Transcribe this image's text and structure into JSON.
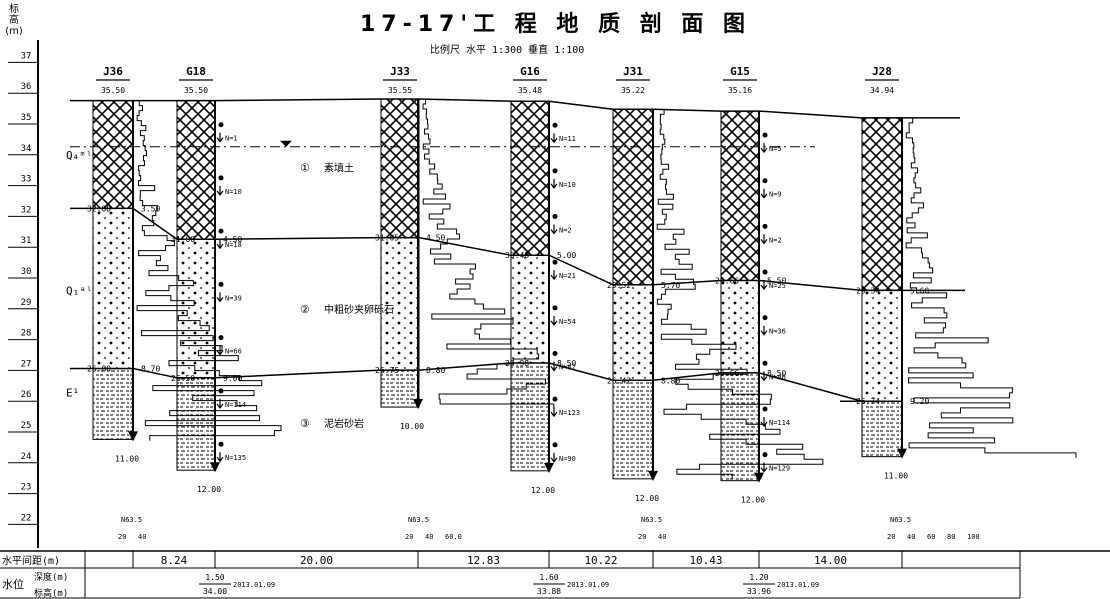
{
  "title": "17-17'工 程 地 质 剖 面 图",
  "scale_text": "比例尺  水平  1:300    垂直  1:100",
  "y_axis": {
    "label": [
      "标",
      "高",
      "(m)"
    ],
    "ticks": [
      37,
      36,
      35,
      34,
      33,
      32,
      31,
      30,
      29,
      28,
      27,
      26,
      25,
      24,
      23,
      22
    ]
  },
  "boreholes": [
    {
      "id": "J36",
      "elev": "35.50",
      "kind": "cpt",
      "depth_label": "11.00"
    },
    {
      "id": "G18",
      "elev": "35.50",
      "kind": "spt",
      "depth_label": "12.00"
    },
    {
      "id": "J33",
      "elev": "35.55",
      "kind": "cpt",
      "depth_label": "10.00"
    },
    {
      "id": "G16",
      "elev": "35.48",
      "kind": "spt",
      "depth_label": "12.00"
    },
    {
      "id": "J31",
      "elev": "35.22",
      "kind": "cpt",
      "depth_label": "12.00"
    },
    {
      "id": "G15",
      "elev": "35.16",
      "kind": "spt",
      "depth_label": "12.00"
    },
    {
      "id": "J28",
      "elev": "34.94",
      "kind": "cpt",
      "depth_label": "11.00"
    }
  ],
  "layer_tops": {
    "J36": [
      [
        "32.00",
        "3.50"
      ],
      [
        "26.80",
        "8.70"
      ]
    ],
    "G18": [
      [
        "31.00",
        "4.50"
      ],
      [
        "26.50",
        "9.00"
      ]
    ],
    "J33": [
      [
        "31.05",
        "4.50"
      ],
      [
        "26.75",
        "8.80"
      ]
    ],
    "G16": [
      [
        "30.48",
        "5.00"
      ],
      [
        "26.98",
        "8.50"
      ]
    ],
    "J31": [
      [
        "29.52",
        "5.70"
      ],
      [
        "26.42",
        "8.80"
      ]
    ],
    "G15": [
      [
        "29.66",
        "5.50"
      ],
      [
        "26.66",
        "8.50"
      ]
    ],
    "J28": [
      [
        "29.34",
        "5.60"
      ],
      [
        "25.74",
        "9.20"
      ]
    ]
  },
  "spt": {
    "G18": [
      "N=1",
      "N=10",
      "N=18",
      "N=39",
      "N=66",
      "N=114",
      "N=135"
    ],
    "G16": [
      "N=11",
      "N=10",
      "N=2",
      "N=21",
      "N=54",
      "N=87",
      "N=123",
      "N=90"
    ],
    "G15": [
      "N=5",
      "N=9",
      "N=2",
      "N=25",
      "N=36",
      "N=96",
      "N=114",
      "N=129"
    ]
  },
  "layers": [
    {
      "num": "①",
      "name": "素填土"
    },
    {
      "num": "②",
      "name": "中粗砂夹卵砾石"
    },
    {
      "num": "③",
      "name": "泥岩砂岩"
    }
  ],
  "strata_codes": [
    "Q₄ᵐˡ",
    "Q₁ᵃˡ",
    "E¹"
  ],
  "cpt_axis_labels": {
    "J36": [
      "N63.5",
      "20",
      "40"
    ],
    "J33": [
      "N63.5",
      "20",
      "40",
      "60.0"
    ],
    "J31": [
      "N63.5",
      "20",
      "40"
    ],
    "J28": [
      "N63.5",
      "20",
      "40",
      "60",
      "80",
      "100"
    ]
  },
  "table": {
    "row1_label": "水平间距(m)",
    "distances": [
      "8.24",
      "20.00",
      "12.83",
      "10.22",
      "10.43",
      "14.00"
    ],
    "row2_label": "水位",
    "sub_labels": [
      "深度(m)",
      "标高(m)"
    ],
    "water": [
      {
        "depth": "1.50",
        "elev": "34.00",
        "date": "2013.01.09"
      },
      {
        "depth": "1.60",
        "elev": "33.88",
        "date": "2013.01.09"
      },
      {
        "depth": "1.20",
        "elev": "33.96",
        "date": "2013.01.09"
      }
    ]
  }
}
